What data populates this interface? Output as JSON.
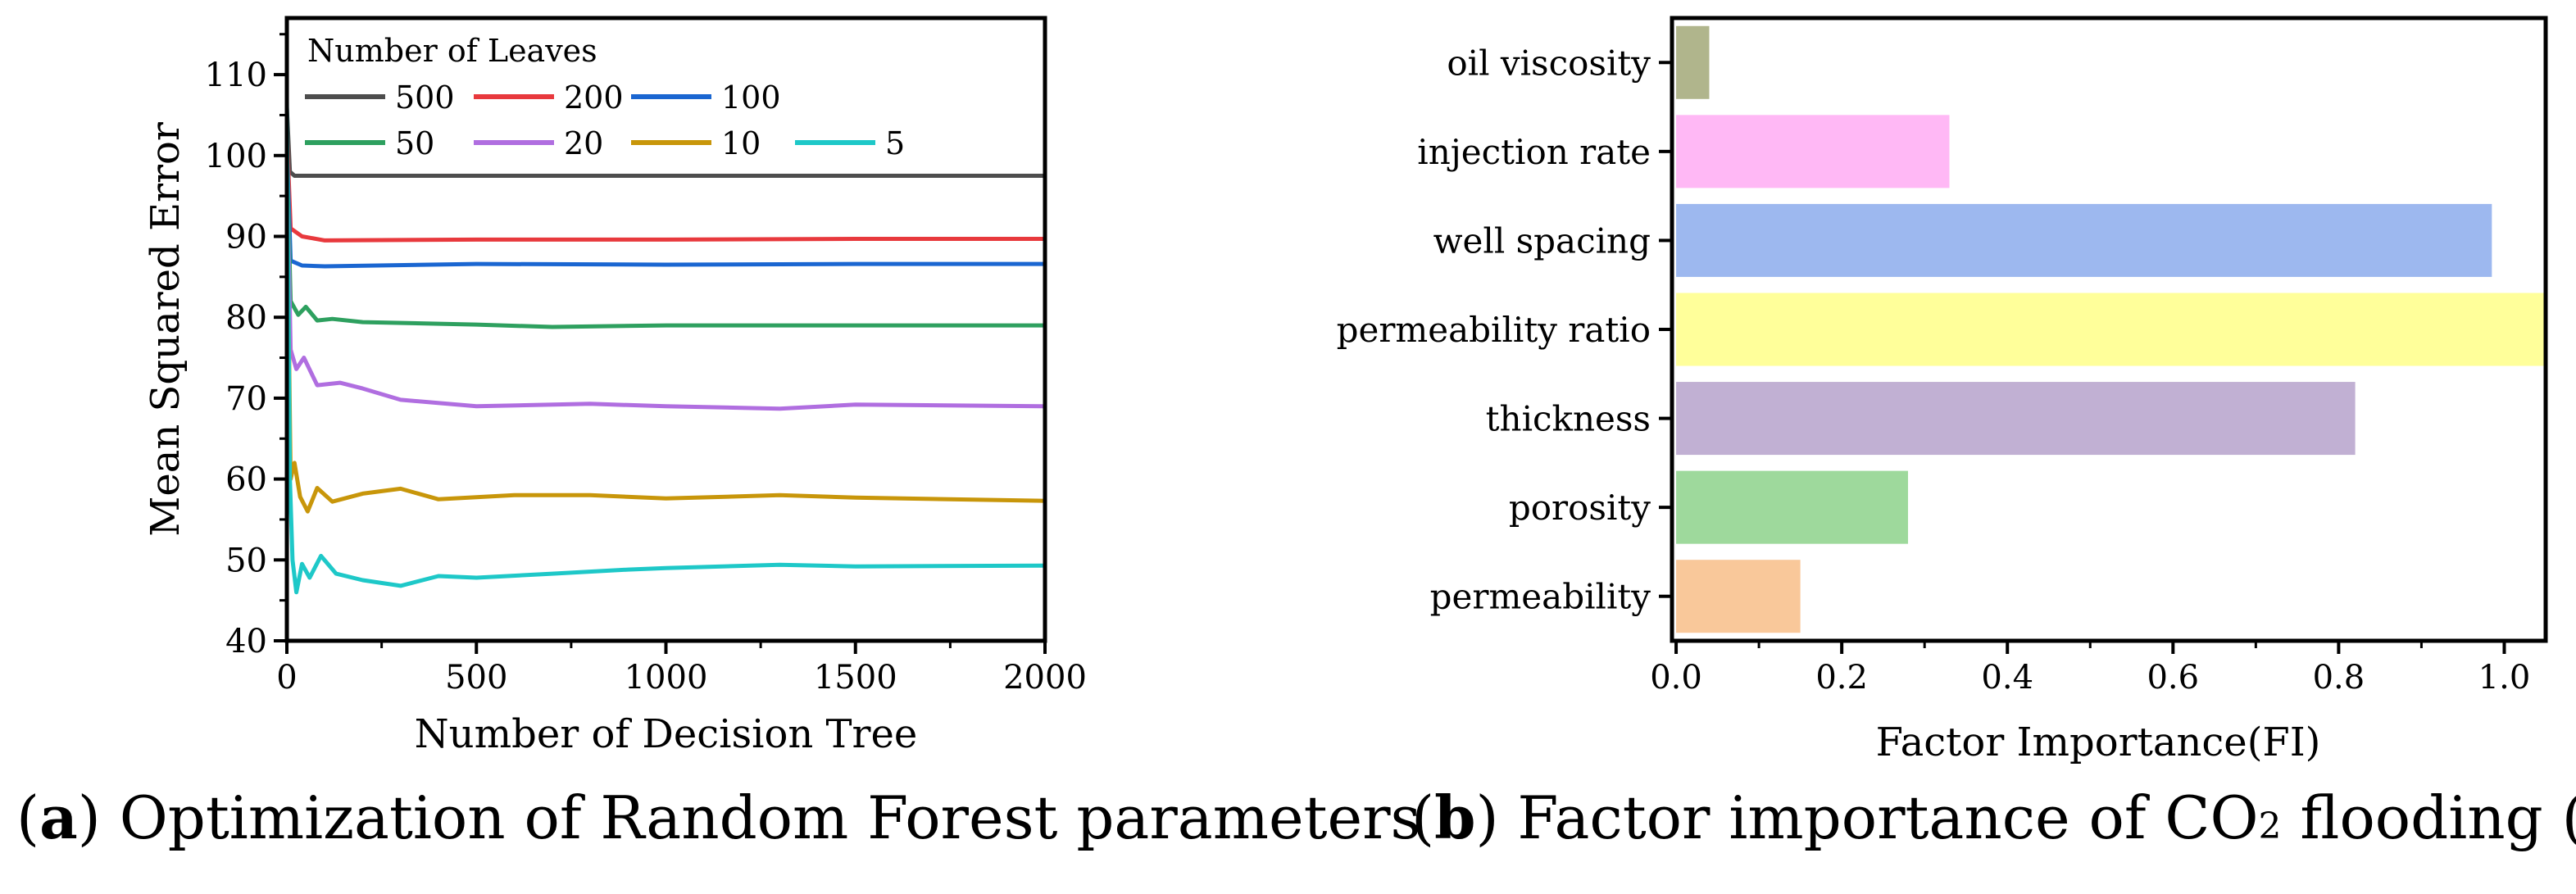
{
  "chart_data": [
    {
      "type": "line",
      "xlabel": "Number of Decision Tree",
      "ylabel": "Mean Squared Error",
      "xlim": [
        0,
        2000
      ],
      "ylim": [
        40,
        117
      ],
      "xticks": [
        0,
        500,
        1000,
        1500,
        2000
      ],
      "yticks": [
        40,
        50,
        60,
        70,
        80,
        90,
        100,
        110
      ],
      "legend": {
        "title": "Number of Leaves",
        "placement": "top-left"
      },
      "series": [
        {
          "name": "500",
          "color": "#4d4d4d",
          "points": [
            [
              0,
              106
            ],
            [
              8,
              98
            ],
            [
              20,
              97.5
            ],
            [
              2000,
              97.5
            ]
          ]
        },
        {
          "name": "200",
          "color": "#e8393d",
          "points": [
            [
              0,
              103
            ],
            [
              10,
              91
            ],
            [
              40,
              90
            ],
            [
              100,
              89.5
            ],
            [
              500,
              89.6
            ],
            [
              1000,
              89.6
            ],
            [
              1500,
              89.7
            ],
            [
              2000,
              89.7
            ]
          ]
        },
        {
          "name": "100",
          "color": "#1a66d1",
          "points": [
            [
              0,
              101
            ],
            [
              10,
              87
            ],
            [
              40,
              86.4
            ],
            [
              100,
              86.3
            ],
            [
              500,
              86.6
            ],
            [
              1000,
              86.5
            ],
            [
              1500,
              86.6
            ],
            [
              2000,
              86.6
            ]
          ]
        },
        {
          "name": "50",
          "color": "#2ea05f",
          "points": [
            [
              0,
              100
            ],
            [
              10,
              82
            ],
            [
              30,
              80.3
            ],
            [
              50,
              81.3
            ],
            [
              80,
              79.6
            ],
            [
              120,
              79.8
            ],
            [
              200,
              79.4
            ],
            [
              500,
              79.1
            ],
            [
              700,
              78.8
            ],
            [
              1000,
              79.0
            ],
            [
              1500,
              79.0
            ],
            [
              2000,
              79.0
            ]
          ]
        },
        {
          "name": "20",
          "color": "#b06ee0",
          "points": [
            [
              0,
              99
            ],
            [
              10,
              76
            ],
            [
              25,
              73.6
            ],
            [
              45,
              75.0
            ],
            [
              80,
              71.6
            ],
            [
              140,
              71.9
            ],
            [
              200,
              71.2
            ],
            [
              300,
              69.8
            ],
            [
              500,
              69.0
            ],
            [
              800,
              69.3
            ],
            [
              1000,
              69.0
            ],
            [
              1300,
              68.7
            ],
            [
              1500,
              69.2
            ],
            [
              2000,
              69.0
            ]
          ]
        },
        {
          "name": "10",
          "color": "#c8960a",
          "points": [
            [
              0,
              98
            ],
            [
              10,
              60
            ],
            [
              20,
              62.0
            ],
            [
              35,
              57.8
            ],
            [
              55,
              56.0
            ],
            [
              80,
              58.9
            ],
            [
              120,
              57.2
            ],
            [
              200,
              58.2
            ],
            [
              300,
              58.8
            ],
            [
              400,
              57.5
            ],
            [
              600,
              58.0
            ],
            [
              800,
              58.0
            ],
            [
              1000,
              57.6
            ],
            [
              1300,
              58.0
            ],
            [
              1500,
              57.7
            ],
            [
              2000,
              57.3
            ]
          ]
        },
        {
          "name": "5",
          "color": "#1ec8c8",
          "points": [
            [
              0,
              107
            ],
            [
              8,
              60
            ],
            [
              15,
              50.0
            ],
            [
              25,
              46.0
            ],
            [
              40,
              49.5
            ],
            [
              60,
              47.8
            ],
            [
              90,
              50.5
            ],
            [
              130,
              48.3
            ],
            [
              200,
              47.5
            ],
            [
              300,
              46.8
            ],
            [
              400,
              48.0
            ],
            [
              500,
              47.8
            ],
            [
              700,
              48.3
            ],
            [
              900,
              48.8
            ],
            [
              1000,
              49.0
            ],
            [
              1300,
              49.4
            ],
            [
              1500,
              49.2
            ],
            [
              2000,
              49.3
            ]
          ]
        }
      ]
    },
    {
      "type": "bar",
      "orientation": "horizontal",
      "xlabel": "Factor Importance(FI)",
      "ylabel": "",
      "xlim": [
        -0.005,
        1.05
      ],
      "xticks": [
        0.0,
        0.2,
        0.4,
        0.6,
        0.8,
        1.0
      ],
      "tick_labels": [
        "0.0",
        "0.2",
        "0.4",
        "0.6",
        "0.8",
        "1.0"
      ],
      "categories": [
        "oil viscosity",
        "injection rate",
        "well spacing",
        "permeability ratio",
        "thickness",
        "porosity",
        "permeability"
      ],
      "values": [
        0.04,
        0.33,
        0.985,
        1.05,
        0.82,
        0.28,
        0.15
      ],
      "colors": [
        "#b0b58c",
        "#ffb8f5",
        "#9db8ef",
        "#ffff9a",
        "#c1b0d3",
        "#9ed99c",
        "#f9c89a"
      ]
    }
  ],
  "captions": {
    "a_label": "a",
    "a_text": "Optimization of Random Forest parameters",
    "b_label": "b",
    "b_text_before": "Factor importance of CO",
    "b_sub": "2",
    "b_text_after": " flooding (FI)"
  }
}
